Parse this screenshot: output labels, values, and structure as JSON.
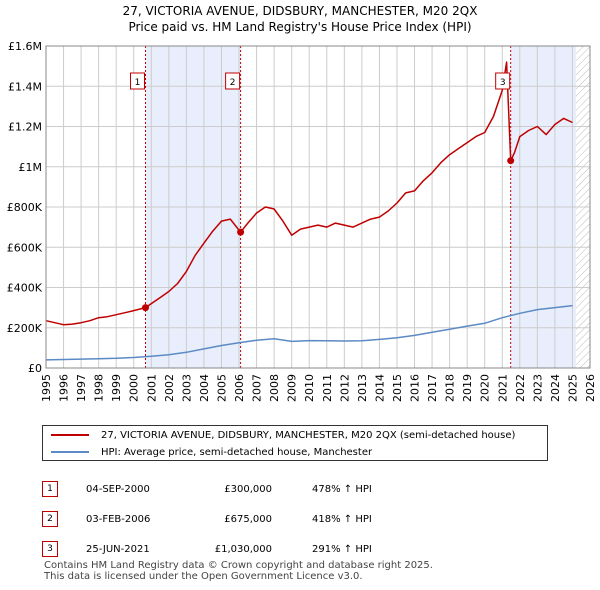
{
  "title_line1": "27, VICTORIA AVENUE, DIDSBURY, MANCHESTER, M20 2QX",
  "title_line2": "Price paid vs. HM Land Registry's House Price Index (HPI)",
  "legend": {
    "property": "27, VICTORIA AVENUE, DIDSBURY, MANCHESTER, M20 2QX (semi-detached house)",
    "hpi": "HPI: Average price, semi-detached house, Manchester"
  },
  "colors": {
    "property": "#c00000",
    "hpi": "#5b8ac5",
    "shade": "#e8eefb",
    "grid": "#cccccc"
  },
  "sales": [
    {
      "num": "1",
      "date": "04-SEP-2000",
      "price": "£300,000",
      "pct": "478% ↑ HPI",
      "t": 2000.67,
      "value": 300000
    },
    {
      "num": "2",
      "date": "03-FEB-2006",
      "price": "£675,000",
      "pct": "418% ↑ HPI",
      "t": 2006.09,
      "value": 675000
    },
    {
      "num": "3",
      "date": "25-JUN-2021",
      "price": "£1,030,000",
      "pct": "291% ↑ HPI",
      "t": 2021.48,
      "value": 1030000
    }
  ],
  "footer": {
    "line1": "Contains HM Land Registry data © Crown copyright and database right 2025.",
    "line2": "This data is licensed under the Open Government Licence v3.0."
  },
  "chart_data": {
    "type": "line",
    "title": "Price paid vs. HM Land Registry's House Price Index (HPI)",
    "xlim": [
      1995,
      2026
    ],
    "ylim": [
      0,
      1600000
    ],
    "yticks": [
      0,
      200000,
      400000,
      600000,
      800000,
      1000000,
      1200000,
      1400000,
      1600000
    ],
    "ytick_labels": [
      "£0",
      "£200K",
      "£400K",
      "£600K",
      "£800K",
      "£1M",
      "£1.2M",
      "£1.4M",
      "£1.6M"
    ],
    "xticks": [
      1995,
      1996,
      1997,
      1998,
      1999,
      2000,
      2001,
      2002,
      2003,
      2004,
      2005,
      2006,
      2007,
      2008,
      2009,
      2010,
      2011,
      2012,
      2013,
      2014,
      2015,
      2016,
      2017,
      2018,
      2019,
      2020,
      2021,
      2022,
      2023,
      2024,
      2025,
      2026
    ],
    "shaded_periods": [
      [
        2000.67,
        2006.09
      ],
      [
        2021.48,
        2025.2
      ]
    ],
    "hatched_from": 2025.2,
    "series": [
      {
        "name": "27, VICTORIA AVENUE, DIDSBURY, MANCHESTER, M20 2QX (semi-detached house)",
        "x": [
          1995,
          1995.5,
          1996,
          1996.5,
          1997,
          1997.5,
          1998,
          1998.5,
          1999,
          1999.5,
          2000,
          2000.67,
          2001,
          2001.5,
          2002,
          2002.5,
          2003,
          2003.5,
          2004,
          2004.5,
          2005,
          2005.5,
          2006.09,
          2006.5,
          2007,
          2007.5,
          2008,
          2008.5,
          2009,
          2009.5,
          2010,
          2010.5,
          2011,
          2011.5,
          2012,
          2012.5,
          2013,
          2013.5,
          2014,
          2014.5,
          2015,
          2015.5,
          2016,
          2016.5,
          2017,
          2017.5,
          2018,
          2018.5,
          2019,
          2019.5,
          2020,
          2020.5,
          2021.0,
          2021.25,
          2021.48,
          2021.7,
          2022,
          2022.5,
          2023,
          2023.5,
          2024,
          2024.5,
          2025.0
        ],
        "y": [
          235000,
          225000,
          215000,
          218000,
          225000,
          235000,
          250000,
          255000,
          265000,
          275000,
          285000,
          300000,
          320000,
          350000,
          380000,
          420000,
          480000,
          560000,
          620000,
          680000,
          730000,
          740000,
          675000,
          720000,
          770000,
          800000,
          790000,
          730000,
          660000,
          690000,
          700000,
          710000,
          700000,
          720000,
          710000,
          700000,
          720000,
          740000,
          750000,
          780000,
          820000,
          870000,
          880000,
          930000,
          970000,
          1020000,
          1060000,
          1090000,
          1120000,
          1150000,
          1170000,
          1250000,
          1380000,
          1520000,
          1030000,
          1070000,
          1150000,
          1180000,
          1200000,
          1160000,
          1210000,
          1240000,
          1220000
        ]
      },
      {
        "name": "HPI: Average price, semi-detached house, Manchester",
        "x": [
          1995,
          1996,
          1997,
          1998,
          1999,
          2000,
          2001,
          2002,
          2003,
          2004,
          2005,
          2006,
          2007,
          2008,
          2009,
          2010,
          2011,
          2012,
          2013,
          2014,
          2015,
          2016,
          2017,
          2018,
          2019,
          2020,
          2021,
          2022,
          2023,
          2024,
          2025.0
        ],
        "y": [
          40000,
          42000,
          44000,
          46000,
          48000,
          52000,
          58000,
          66000,
          78000,
          95000,
          112000,
          125000,
          138000,
          145000,
          132000,
          136000,
          135000,
          134000,
          135000,
          142000,
          150000,
          162000,
          178000,
          193000,
          208000,
          222000,
          250000,
          272000,
          290000,
          300000,
          310000
        ]
      }
    ]
  }
}
